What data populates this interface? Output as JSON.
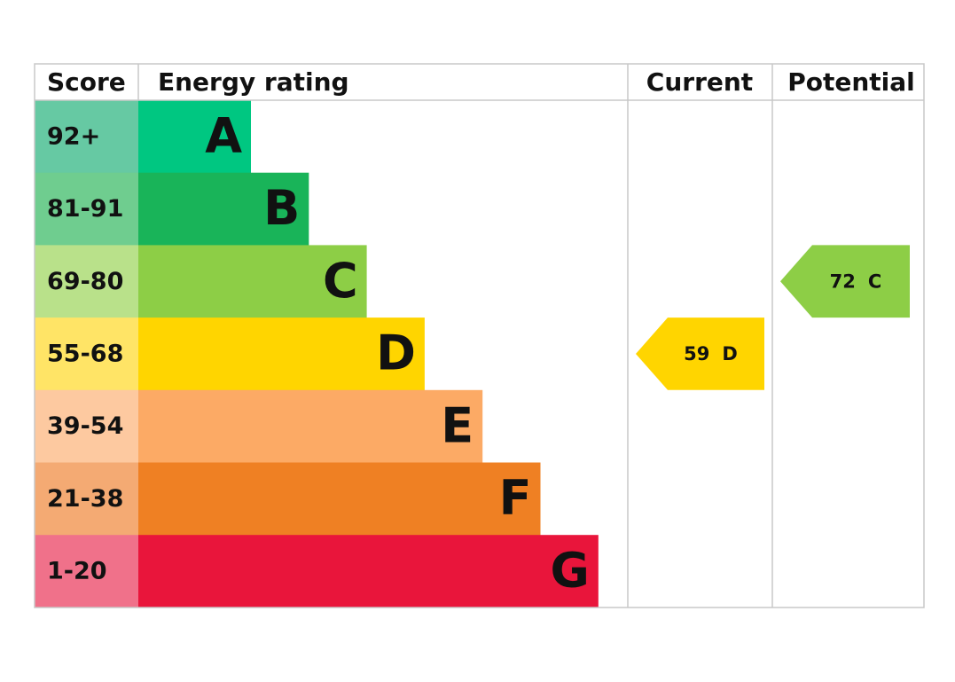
{
  "header": {
    "score": "Score",
    "rating": "Energy rating",
    "current": "Current",
    "potential": "Potential"
  },
  "bands": [
    {
      "score": "92+",
      "letter": "A",
      "color": "#00c781",
      "score_color": "#66c9a3"
    },
    {
      "score": "81-91",
      "letter": "B",
      "color": "#19b459",
      "score_color": "#6fcd8f"
    },
    {
      "score": "69-80",
      "letter": "C",
      "color": "#8dce46",
      "score_color": "#b9e18a"
    },
    {
      "score": "55-68",
      "letter": "D",
      "color": "#ffd500",
      "score_color": "#ffe466"
    },
    {
      "score": "39-54",
      "letter": "E",
      "color": "#fcaa65",
      "score_color": "#fdc9a0"
    },
    {
      "score": "21-38",
      "letter": "F",
      "color": "#ef8023",
      "score_color": "#f4aa73"
    },
    {
      "score": "1-20",
      "letter": "G",
      "color": "#e9153b",
      "score_color": "#f0718a"
    }
  ],
  "current": {
    "score": 59,
    "band": "D"
  },
  "potential": {
    "score": 72,
    "band": "C"
  }
}
